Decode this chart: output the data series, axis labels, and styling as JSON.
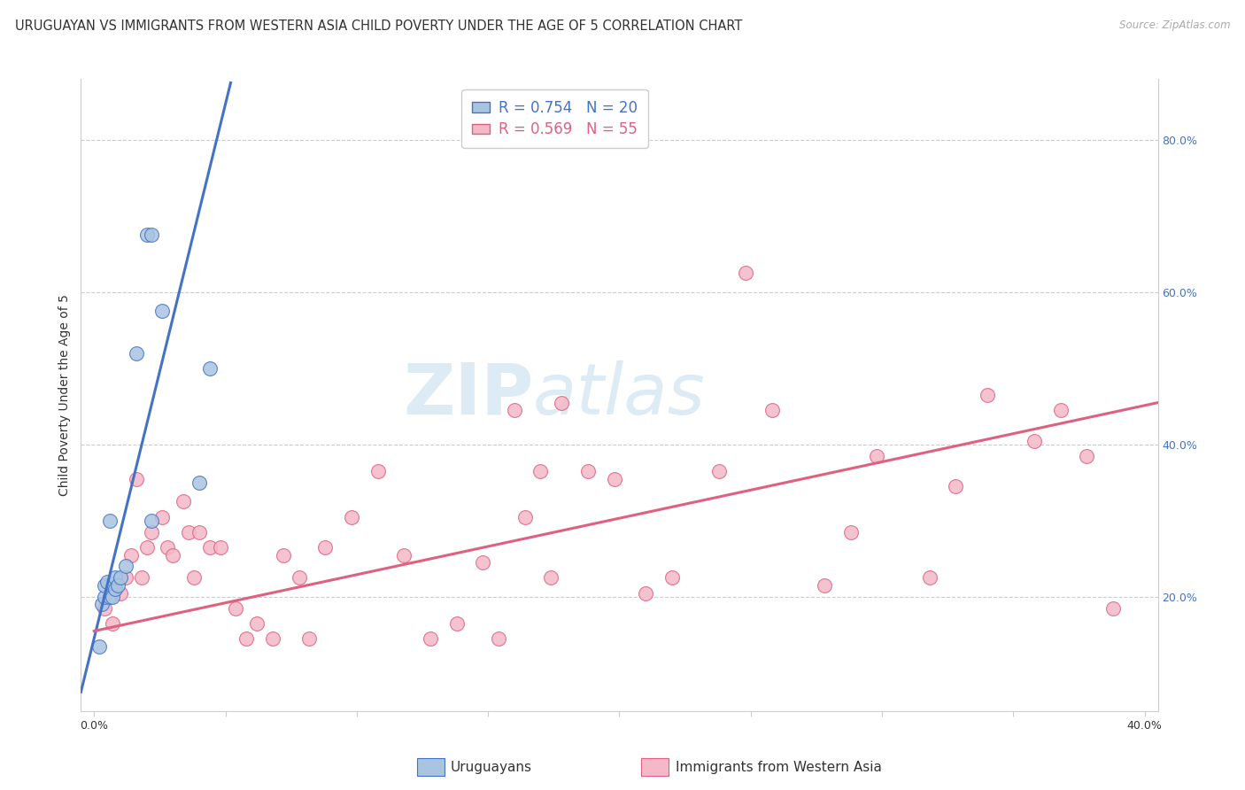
{
  "title": "URUGUAYAN VS IMMIGRANTS FROM WESTERN ASIA CHILD POVERTY UNDER THE AGE OF 5 CORRELATION CHART",
  "source": "Source: ZipAtlas.com",
  "ylabel": "Child Poverty Under the Age of 5",
  "xlim": [
    -0.005,
    0.405
  ],
  "ylim": [
    0.05,
    0.88
  ],
  "x_ticks": [
    0.0,
    0.05,
    0.1,
    0.15,
    0.2,
    0.25,
    0.3,
    0.35,
    0.4
  ],
  "x_tick_labels": [
    "0.0%",
    "",
    "",
    "",
    "",
    "",
    "",
    "",
    "40.0%"
  ],
  "y_ticks_right": [
    0.2,
    0.4,
    0.6,
    0.8
  ],
  "y_tick_labels_right": [
    "20.0%",
    "40.0%",
    "60.0%",
    "80.0%"
  ],
  "legend_blue_r": "R = 0.754",
  "legend_blue_n": "N = 20",
  "legend_pink_r": "R = 0.569",
  "legend_pink_n": "N = 55",
  "blue_color": "#a8c4e0",
  "pink_color": "#f4b8c8",
  "blue_line_color": "#4472c4",
  "pink_line_color": "#e06080",
  "blue_scatter_x": [
    0.006,
    0.016,
    0.02,
    0.022,
    0.022,
    0.026,
    0.04,
    0.044,
    0.002,
    0.003,
    0.004,
    0.004,
    0.005,
    0.006,
    0.007,
    0.008,
    0.008,
    0.009,
    0.01,
    0.012
  ],
  "blue_scatter_y": [
    0.3,
    0.52,
    0.675,
    0.675,
    0.3,
    0.575,
    0.35,
    0.5,
    0.135,
    0.19,
    0.2,
    0.215,
    0.22,
    0.2,
    0.2,
    0.21,
    0.225,
    0.215,
    0.225,
    0.24
  ],
  "pink_scatter_x": [
    0.004,
    0.007,
    0.01,
    0.012,
    0.014,
    0.016,
    0.018,
    0.02,
    0.022,
    0.026,
    0.028,
    0.03,
    0.034,
    0.036,
    0.038,
    0.04,
    0.044,
    0.048,
    0.054,
    0.058,
    0.062,
    0.068,
    0.072,
    0.078,
    0.082,
    0.088,
    0.098,
    0.108,
    0.118,
    0.128,
    0.138,
    0.148,
    0.154,
    0.16,
    0.164,
    0.17,
    0.174,
    0.178,
    0.188,
    0.198,
    0.21,
    0.22,
    0.238,
    0.248,
    0.258,
    0.278,
    0.288,
    0.298,
    0.318,
    0.328,
    0.34,
    0.358,
    0.368,
    0.378,
    0.388
  ],
  "pink_scatter_y": [
    0.185,
    0.165,
    0.205,
    0.225,
    0.255,
    0.355,
    0.225,
    0.265,
    0.285,
    0.305,
    0.265,
    0.255,
    0.325,
    0.285,
    0.225,
    0.285,
    0.265,
    0.265,
    0.185,
    0.145,
    0.165,
    0.145,
    0.255,
    0.225,
    0.145,
    0.265,
    0.305,
    0.365,
    0.255,
    0.145,
    0.165,
    0.245,
    0.145,
    0.445,
    0.305,
    0.365,
    0.225,
    0.455,
    0.365,
    0.355,
    0.205,
    0.225,
    0.365,
    0.625,
    0.445,
    0.215,
    0.285,
    0.385,
    0.225,
    0.345,
    0.465,
    0.405,
    0.445,
    0.385,
    0.185
  ],
  "blue_line_x": [
    -0.005,
    0.052
  ],
  "blue_line_y": [
    0.075,
    0.875
  ],
  "pink_line_x": [
    0.0,
    0.405
  ],
  "pink_line_y": [
    0.155,
    0.455
  ],
  "title_fontsize": 10.5,
  "axis_label_fontsize": 10,
  "tick_fontsize": 9,
  "legend_fontsize": 12,
  "right_tick_color": "#4472c4"
}
